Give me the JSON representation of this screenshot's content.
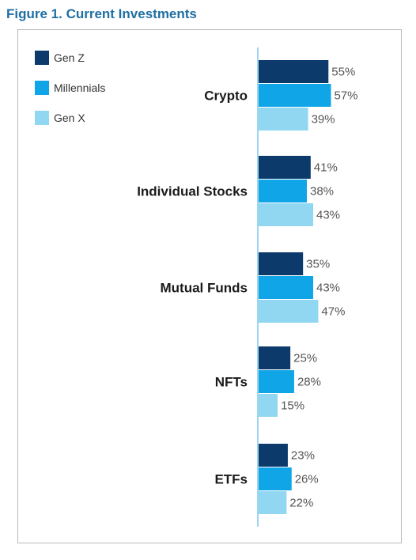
{
  "figure": {
    "title": "Figure 1. Current Investments"
  },
  "chart_data": {
    "type": "bar",
    "orientation": "horizontal",
    "title": "Figure 1. Current Investments",
    "categories": [
      "Crypto",
      "Individual Stocks",
      "Mutual Funds",
      "NFTs",
      "ETFs"
    ],
    "series": [
      {
        "name": "Gen Z",
        "color": "#0b3a6b",
        "values": [
          55,
          41,
          35,
          25,
          23
        ]
      },
      {
        "name": "Millennials",
        "color": "#10a5e6",
        "values": [
          57,
          38,
          43,
          28,
          26
        ]
      },
      {
        "name": "Gen X",
        "color": "#92d7f2",
        "values": [
          39,
          43,
          47,
          15,
          22
        ]
      }
    ],
    "value_format": "%",
    "legend": "top-left",
    "grid": false
  }
}
